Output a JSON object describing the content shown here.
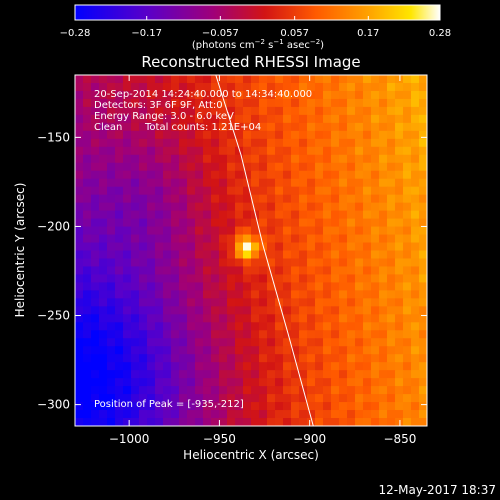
{
  "chart_data": {
    "type": "heatmap",
    "title": "Reconstructed RHESSI Image",
    "xlabel": "Heliocentric X (arcsec)",
    "ylabel": "Heliocentric Y (arcsec)",
    "xlim": [
      -1030,
      -835
    ],
    "ylim": [
      -312,
      -115
    ],
    "x_ticks": [
      {
        "value": -1000,
        "label": "−1000"
      },
      {
        "value": -950,
        "label": "−950"
      },
      {
        "value": -900,
        "label": "−900"
      },
      {
        "value": -850,
        "label": "−850"
      }
    ],
    "y_ticks": [
      {
        "value": -150,
        "label": "−150"
      },
      {
        "value": -200,
        "label": "−200"
      },
      {
        "value": -250,
        "label": "−250"
      },
      {
        "value": -300,
        "label": "−300"
      }
    ],
    "colorbar": {
      "range": [
        -0.28,
        0.28
      ],
      "ticks": [
        {
          "value": -0.28,
          "label": "−0.28"
        },
        {
          "value": -0.17,
          "label": "−0.17"
        },
        {
          "value": -0.057,
          "label": "−0.057"
        },
        {
          "value": 0.057,
          "label": "0.057"
        },
        {
          "value": 0.17,
          "label": "0.17"
        },
        {
          "value": 0.28,
          "label": "0.28"
        }
      ],
      "units_main": "(photons cm",
      "units_exp1": "−2",
      "units_mid1": " s",
      "units_exp2": "−1",
      "units_mid2": " asec",
      "units_exp3": "−2",
      "units_end": ")",
      "colormap": "rhessi-heat: blue-purple-red-orange-yellow-white"
    },
    "annotations": {
      "time_range": "20-Sep-2014 14:24:40.000 to 14:34:40.000",
      "detectors": "Detectors: 3F 6F 9F, Att:0",
      "energy": "Energy Range: 3.0 - 6.0 keV",
      "clean": "Clean",
      "total_counts": "Total counts: 1.21E+04",
      "peak": "Position of Peak = [-935,-212]"
    },
    "peak_position": [
      -935,
      -212
    ],
    "limb_curve": [
      [
        -952,
        -115
      ],
      [
        -938,
        -160
      ],
      [
        -926,
        -210
      ],
      [
        -912,
        -260
      ],
      [
        -898,
        -312
      ]
    ],
    "date_stamp": "12-May-2017 18:37"
  },
  "colors": {
    "background": "#000000",
    "foreground": "#ffffff",
    "colormap_stops": [
      "#0000ff",
      "#5a00c8",
      "#a00078",
      "#d21414",
      "#ff5a00",
      "#ffa000",
      "#ffe600",
      "#ffffff"
    ]
  }
}
